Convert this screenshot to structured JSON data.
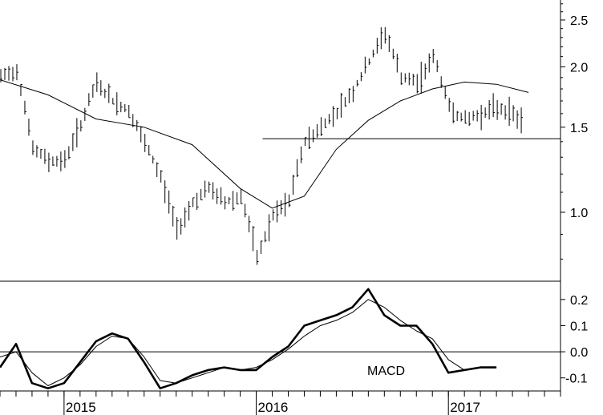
{
  "chart_data": [
    {
      "type": "ohlc",
      "scale": "log",
      "ylim": [
        0.72,
        2.75
      ],
      "y_ticks": [
        "1.0",
        "1.5",
        "2.0",
        "2.5"
      ],
      "y_tick_values": [
        1.0,
        1.5,
        2.0,
        2.5
      ],
      "horizontal_line": 1.42,
      "horizontal_line_start": "2016-01",
      "series": [
        {
          "name": "price_weekly_bars",
          "note": "weekly high-low bars (approximate)"
        },
        {
          "name": "moving_average"
        }
      ],
      "price_close": [
        [
          "2014-09",
          1.9
        ],
        [
          "2014-10",
          1.97
        ],
        [
          "2014-11",
          1.35
        ],
        [
          "2014-12",
          1.28
        ],
        [
          "2015-01",
          1.28
        ],
        [
          "2015-02",
          1.52
        ],
        [
          "2015-03",
          1.85
        ],
        [
          "2015-04",
          1.7
        ],
        [
          "2015-05",
          1.62
        ],
        [
          "2015-06",
          1.38
        ],
        [
          "2015-07",
          1.18
        ],
        [
          "2015-08",
          0.92
        ],
        [
          "2015-09",
          1.05
        ],
        [
          "2015-10",
          1.12
        ],
        [
          "2015-11",
          1.05
        ],
        [
          "2015-12",
          1.08
        ],
        [
          "2016-01",
          0.8
        ],
        [
          "2016-02",
          0.98
        ],
        [
          "2016-03",
          1.05
        ],
        [
          "2016-04",
          1.4
        ],
        [
          "2016-05",
          1.5
        ],
        [
          "2016-06",
          1.62
        ],
        [
          "2016-07",
          1.78
        ],
        [
          "2016-08",
          2.05
        ],
        [
          "2016-09",
          2.35
        ],
        [
          "2016-10",
          1.9
        ],
        [
          "2016-11",
          1.85
        ],
        [
          "2016-12",
          2.1
        ],
        [
          "2017-01",
          1.65
        ],
        [
          "2017-02",
          1.55
        ],
        [
          "2017-03",
          1.6
        ],
        [
          "2017-04",
          1.65
        ],
        [
          "2017-05",
          1.6
        ],
        [
          "2017-06",
          1.5
        ]
      ],
      "moving_average": [
        [
          "2014-09",
          1.88
        ],
        [
          "2014-12",
          1.75
        ],
        [
          "2015-03",
          1.56
        ],
        [
          "2015-06",
          1.5
        ],
        [
          "2015-09",
          1.38
        ],
        [
          "2015-12",
          1.12
        ],
        [
          "2016-02",
          1.02
        ],
        [
          "2016-04",
          1.08
        ],
        [
          "2016-06",
          1.35
        ],
        [
          "2016-08",
          1.55
        ],
        [
          "2016-10",
          1.7
        ],
        [
          "2016-12",
          1.8
        ],
        [
          "2017-02",
          1.86
        ],
        [
          "2017-04",
          1.84
        ],
        [
          "2017-06",
          1.77
        ]
      ]
    },
    {
      "type": "line",
      "label": "MACD",
      "ylim": [
        -0.15,
        0.27
      ],
      "y_ticks": [
        "0.2",
        "0.1",
        "0.0",
        "-0.1"
      ],
      "y_tick_values": [
        0.2,
        0.1,
        0.0,
        -0.1
      ],
      "zero_line": 0.0,
      "series": [
        {
          "name": "macd_line",
          "width": "thick",
          "points": [
            [
              "2014-09",
              -0.06
            ],
            [
              "2014-10",
              0.03
            ],
            [
              "2014-11",
              -0.12
            ],
            [
              "2014-12",
              -0.14
            ],
            [
              "2015-01",
              -0.12
            ],
            [
              "2015-02",
              -0.04
            ],
            [
              "2015-03",
              0.04
            ],
            [
              "2015-04",
              0.07
            ],
            [
              "2015-05",
              0.05
            ],
            [
              "2015-06",
              -0.04
            ],
            [
              "2015-07",
              -0.14
            ],
            [
              "2015-08",
              -0.12
            ],
            [
              "2015-09",
              -0.09
            ],
            [
              "2015-10",
              -0.07
            ],
            [
              "2015-11",
              -0.06
            ],
            [
              "2015-12",
              -0.07
            ],
            [
              "2016-01",
              -0.07
            ],
            [
              "2016-02",
              -0.02
            ],
            [
              "2016-03",
              0.02
            ],
            [
              "2016-04",
              0.1
            ],
            [
              "2016-05",
              0.12
            ],
            [
              "2016-06",
              0.14
            ],
            [
              "2016-07",
              0.17
            ],
            [
              "2016-08",
              0.24
            ],
            [
              "2016-09",
              0.14
            ],
            [
              "2016-10",
              0.1
            ],
            [
              "2016-11",
              0.1
            ],
            [
              "2016-12",
              0.03
            ],
            [
              "2017-01",
              -0.08
            ],
            [
              "2017-02",
              -0.07
            ],
            [
              "2017-03",
              -0.06
            ],
            [
              "2017-04",
              -0.06
            ]
          ]
        },
        {
          "name": "signal_line",
          "width": "thin",
          "points": [
            [
              "2014-09",
              -0.02
            ],
            [
              "2014-10",
              0.0
            ],
            [
              "2014-11",
              -0.08
            ],
            [
              "2014-12",
              -0.13
            ],
            [
              "2015-01",
              -0.1
            ],
            [
              "2015-02",
              -0.05
            ],
            [
              "2015-03",
              0.02
            ],
            [
              "2015-04",
              0.06
            ],
            [
              "2015-05",
              0.05
            ],
            [
              "2015-06",
              -0.02
            ],
            [
              "2015-07",
              -0.11
            ],
            [
              "2015-08",
              -0.12
            ],
            [
              "2015-09",
              -0.1
            ],
            [
              "2015-10",
              -0.08
            ],
            [
              "2015-11",
              -0.06
            ],
            [
              "2015-12",
              -0.07
            ],
            [
              "2016-01",
              -0.06
            ],
            [
              "2016-02",
              -0.03
            ],
            [
              "2016-03",
              0.01
            ],
            [
              "2016-04",
              0.06
            ],
            [
              "2016-05",
              0.1
            ],
            [
              "2016-06",
              0.12
            ],
            [
              "2016-07",
              0.15
            ],
            [
              "2016-08",
              0.2
            ],
            [
              "2016-09",
              0.17
            ],
            [
              "2016-10",
              0.12
            ],
            [
              "2016-11",
              0.08
            ],
            [
              "2016-12",
              0.05
            ],
            [
              "2017-01",
              -0.03
            ],
            [
              "2017-02",
              -0.07
            ],
            [
              "2017-03",
              -0.06
            ],
            [
              "2017-04",
              -0.06
            ]
          ]
        }
      ]
    }
  ],
  "x_axis": {
    "range": [
      "2014-09",
      "2017-08"
    ],
    "year_labels": [
      {
        "label": "2015",
        "date": "2015-01"
      },
      {
        "label": "2016",
        "date": "2016-01"
      },
      {
        "label": "2017",
        "date": "2017-01"
      }
    ]
  }
}
